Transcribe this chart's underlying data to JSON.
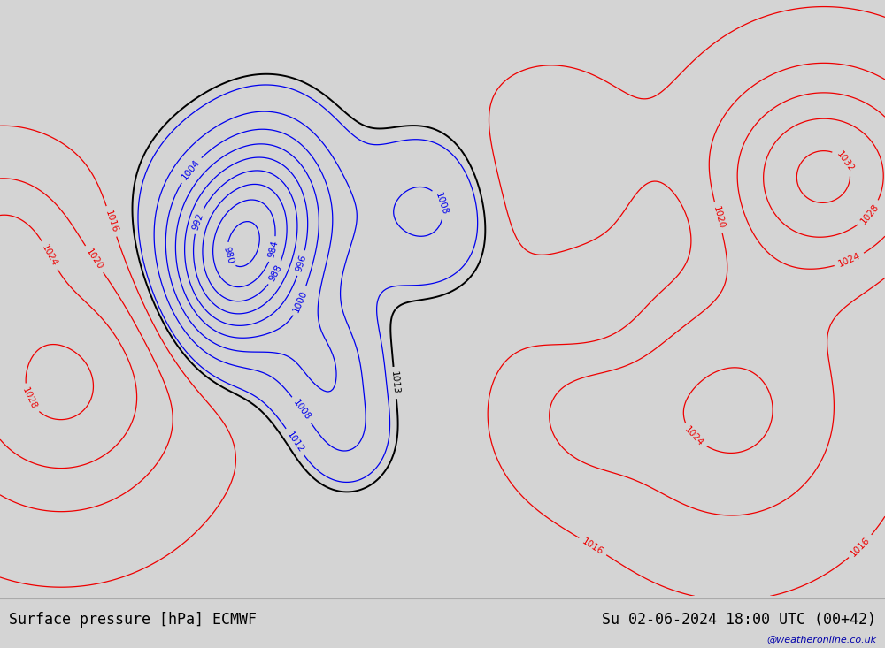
{
  "title_left": "Surface pressure [hPa] ECMWF",
  "title_right": "Su 02-06-2024 18:00 UTC (00+42)",
  "watermark": "@weatheronline.co.uk",
  "bg_color": "#d4d4d4",
  "land_color": "#b8e090",
  "ocean_color": "#e0e0e0",
  "coast_color": "#999999",
  "border_color": "#777777",
  "state_color": "#888888",
  "contour_blue": "#0000ee",
  "contour_red": "#ee0000",
  "contour_black": "#000000",
  "label_fontsize": 7.5,
  "footer_fontsize": 12,
  "figsize": [
    10.0,
    7.33
  ],
  "dpi": 100,
  "lon_min": -175,
  "lon_max": -30,
  "lat_min": 14,
  "lat_max": 82
}
